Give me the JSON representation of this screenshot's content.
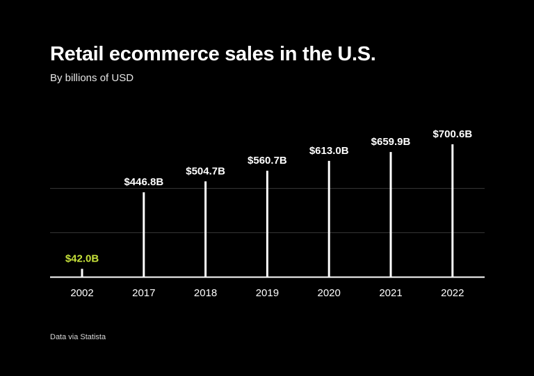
{
  "title": "Retail ecommerce sales in the U.S.",
  "subtitle": "By billions of USD",
  "source": "Data via Statista",
  "colors": {
    "background": "#000000",
    "bar": "#ffffff",
    "highlight": "#c6e13a",
    "gridline": "#3a3a3a",
    "text": "#ffffff"
  },
  "chart_data": {
    "type": "bar",
    "title": "Retail ecommerce sales in the U.S.",
    "subtitle": "By billions of USD",
    "categories": [
      "2002",
      "2017",
      "2018",
      "2019",
      "2020",
      "2021",
      "2022"
    ],
    "values": [
      42.0,
      446.8,
      504.7,
      560.7,
      613.0,
      659.9,
      700.6
    ],
    "value_labels": [
      "$42.0B",
      "$446.8B",
      "$504.7B",
      "$560.7B",
      "$613.0B",
      "$659.9B",
      "$700.6B"
    ],
    "highlight_category": "2002",
    "xlabel": "",
    "ylabel": "",
    "ylim": [
      0,
      700.6
    ],
    "grid": true,
    "gridlines": [
      233.5,
      467.1
    ],
    "legend": "none"
  }
}
